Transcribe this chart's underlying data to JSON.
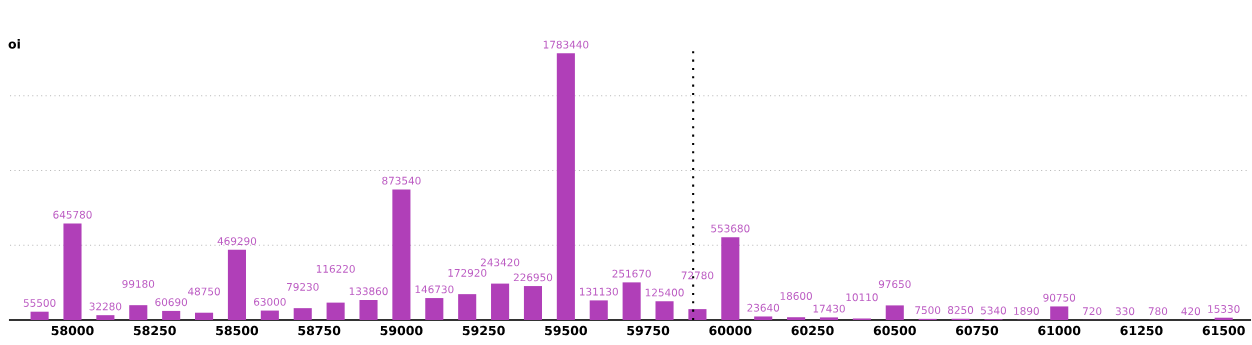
{
  "chart_data": {
    "type": "bar",
    "ylabel": "oi",
    "x": [
      57900,
      58000,
      58100,
      58200,
      58300,
      58400,
      58500,
      58600,
      58700,
      58800,
      58900,
      59000,
      59100,
      59200,
      59300,
      59400,
      59500,
      59600,
      59700,
      59800,
      59900,
      60000,
      60100,
      60200,
      60300,
      60400,
      60500,
      60600,
      60700,
      60800,
      60900,
      61000,
      61100,
      61200,
      61300,
      61400,
      61500
    ],
    "values": [
      55500,
      645780,
      32280,
      99180,
      60690,
      48750,
      469290,
      63000,
      79230,
      116220,
      133860,
      873540,
      146730,
      172920,
      243420,
      226950,
      1783440,
      131130,
      251670,
      125400,
      72780,
      553680,
      23640,
      18600,
      17430,
      10110,
      97650,
      7500,
      8250,
      5340,
      1890,
      90750,
      720,
      330,
      780,
      420,
      15330
    ],
    "color": "#b03fb8",
    "data_labels": true,
    "xlim": [
      57810,
      61580
    ],
    "xticks": [
      58000,
      58250,
      58500,
      58750,
      59000,
      59250,
      59500,
      59750,
      60000,
      60250,
      60500,
      60750,
      61000,
      61250,
      61500
    ],
    "yticks": [
      {
        "value": 500000,
        "label": null
      },
      {
        "value": 1000000,
        "label": null
      },
      {
        "value": 1500000,
        "label": null
      }
    ],
    "tick_labels": "x",
    "grid": "y",
    "ref_lines": [
      {
        "axis": "x",
        "value": 59887,
        "label": null,
        "color": "#000000",
        "line_style": "dotted"
      }
    ]
  }
}
